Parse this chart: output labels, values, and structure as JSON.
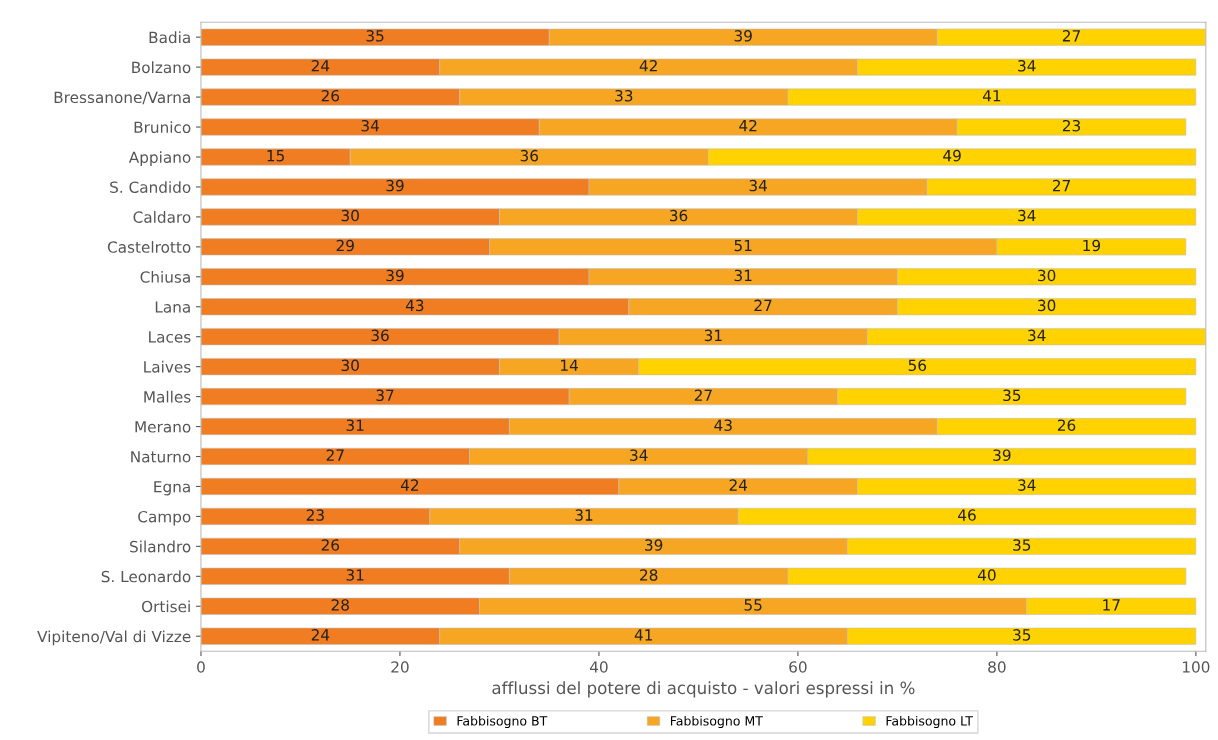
{
  "chart_data": {
    "type": "bar",
    "orientation": "horizontal",
    "stacked": true,
    "data_labels": true,
    "xlabel": "afflussi del potere di acquisto - valori espressi in %",
    "categories": [
      "Badia",
      "Bolzano",
      "Bressanone/Varna",
      "Brunico",
      "Appiano",
      "S. Candido",
      "Caldaro",
      "Castelrotto",
      "Chiusa",
      "Lana",
      "Laces",
      "Laives",
      "Malles",
      "Merano",
      "Naturno",
      "Egna",
      "Campo",
      "Silandro",
      "S. Leonardo",
      "Ortisei",
      "Vipiteno/Val di Vizze"
    ],
    "series": [
      {
        "name": "Fabbisogno BT",
        "color": "#f07d22",
        "values": [
          35,
          24,
          26,
          34,
          15,
          39,
          30,
          29,
          39,
          43,
          36,
          30,
          37,
          31,
          27,
          42,
          23,
          26,
          31,
          28,
          24
        ]
      },
      {
        "name": "Fabbisogno MT",
        "color": "#f6a623",
        "values": [
          39,
          42,
          33,
          42,
          36,
          34,
          36,
          51,
          31,
          27,
          31,
          14,
          27,
          43,
          34,
          24,
          31,
          39,
          28,
          55,
          41
        ]
      },
      {
        "name": "Fabbisogno LT",
        "color": "#ffd200",
        "values": [
          27,
          34,
          41,
          23,
          49,
          27,
          34,
          19,
          30,
          30,
          34,
          56,
          35,
          26,
          39,
          34,
          46,
          35,
          40,
          17,
          35
        ]
      }
    ],
    "xlim": [
      0,
      101
    ],
    "xticks": [
      0,
      20,
      40,
      60,
      80,
      100
    ],
    "grid": false,
    "legend": "bottom"
  }
}
